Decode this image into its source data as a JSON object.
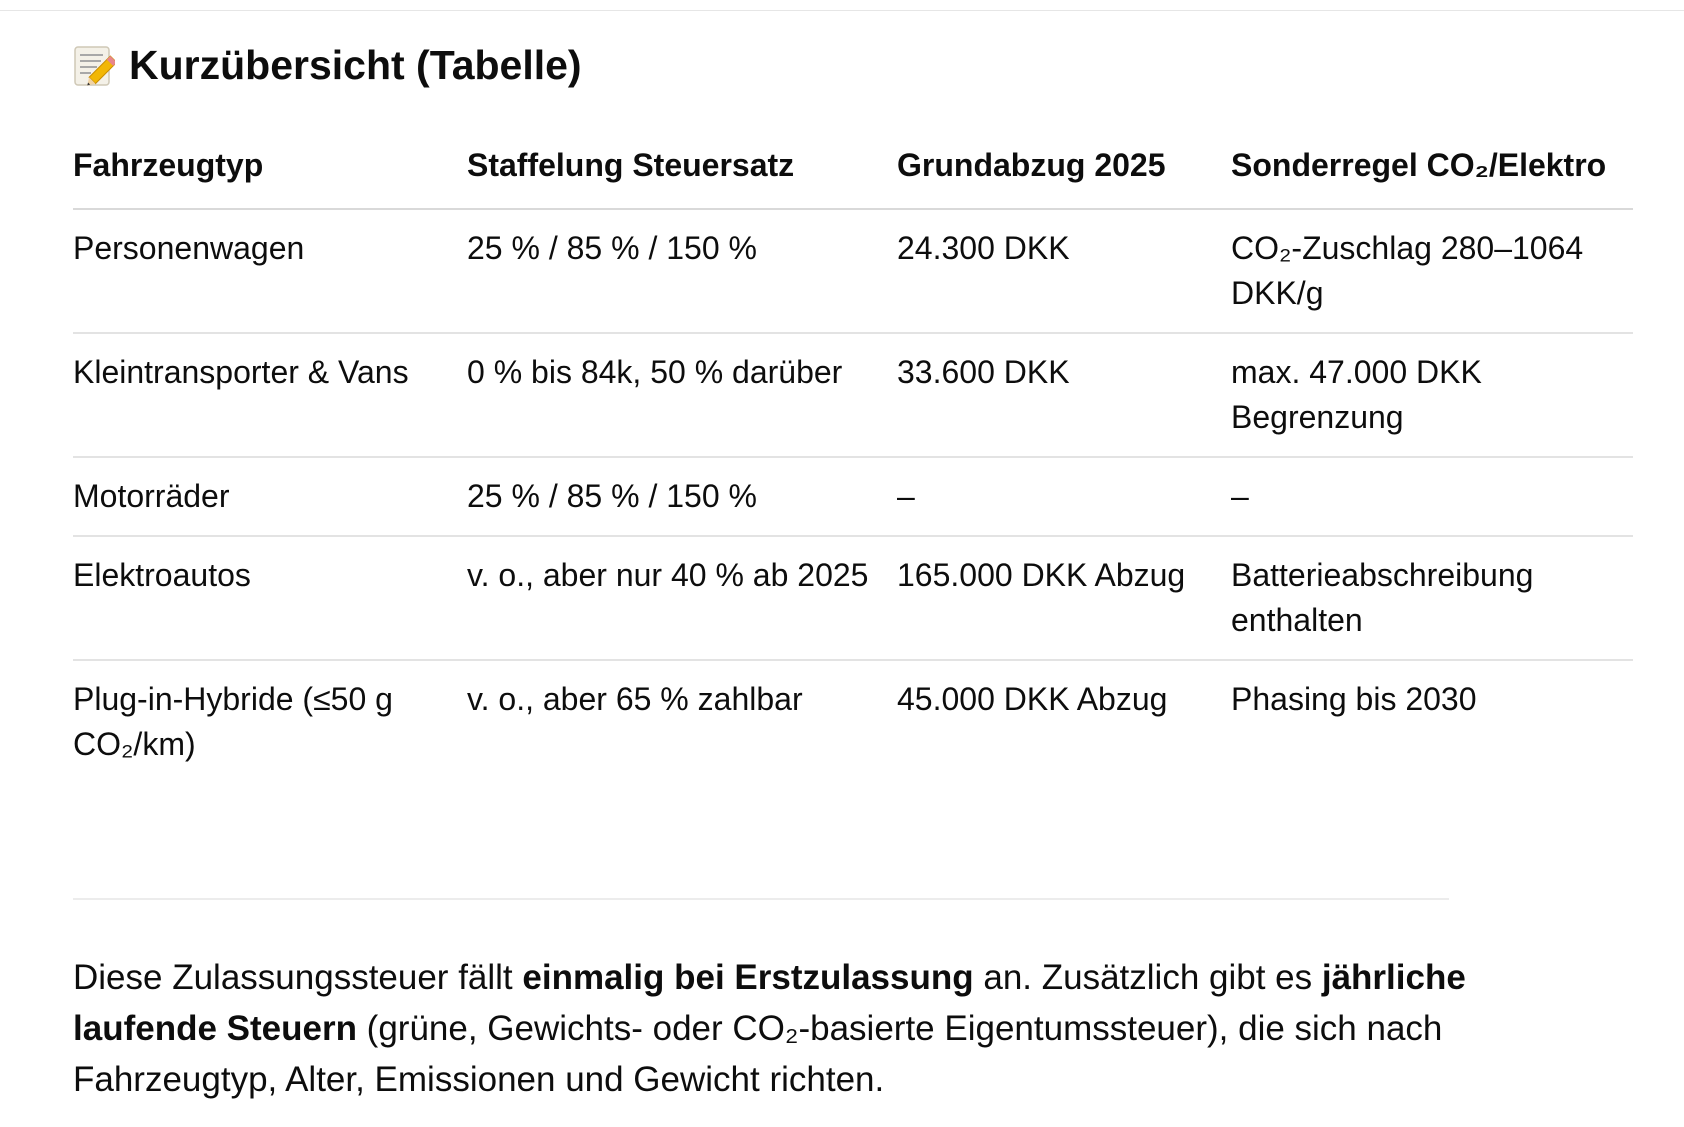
{
  "section": {
    "icon": "memo-pencil-icon",
    "title": "Kurzübersicht (Tabelle)"
  },
  "table": {
    "headers": [
      "Fahrzeugtyp",
      "Staffelung Steuersatz",
      "Grundabzug 2025",
      "Sonderregel CO₂/Elektro"
    ],
    "rows": [
      [
        "Personenwagen",
        "25 % / 85 % / 150 %",
        "24.300 DKK",
        "CO₂-Zuschlag 280–1064 DKK/g"
      ],
      [
        "Kleintransporter & Vans",
        "0 % bis 84k, 50 % darüber",
        "33.600 DKK",
        "max. 47.000 DKK Begrenzung"
      ],
      [
        "Motorräder",
        "25 % / 85 % / 150 %",
        "–",
        "–"
      ],
      [
        "Elektroautos",
        "v. o., aber nur 40 % ab 2025",
        "165.000 DKK Abzug",
        "Batterieabschreibung enthalten"
      ],
      [
        "Plug-in-Hybride (≤50 g CO₂/km)",
        "v. o., aber 65 % zahlbar",
        "45.000 DKK Abzug",
        "Phasing bis 2030"
      ]
    ]
  },
  "paragraph": {
    "part1": "Diese Zulassungssteuer fällt ",
    "bold1": "einmalig bei Erstzulassung",
    "part2": " an. Zusätzlich gibt es ",
    "bold2": "jährliche laufende Steuern",
    "part3": " (grüne, Gewichts- oder CO₂-basierte Eigentums­steuer), die sich nach Fahrzeugtyp, Alter, Emissionen und Gewicht richten."
  }
}
